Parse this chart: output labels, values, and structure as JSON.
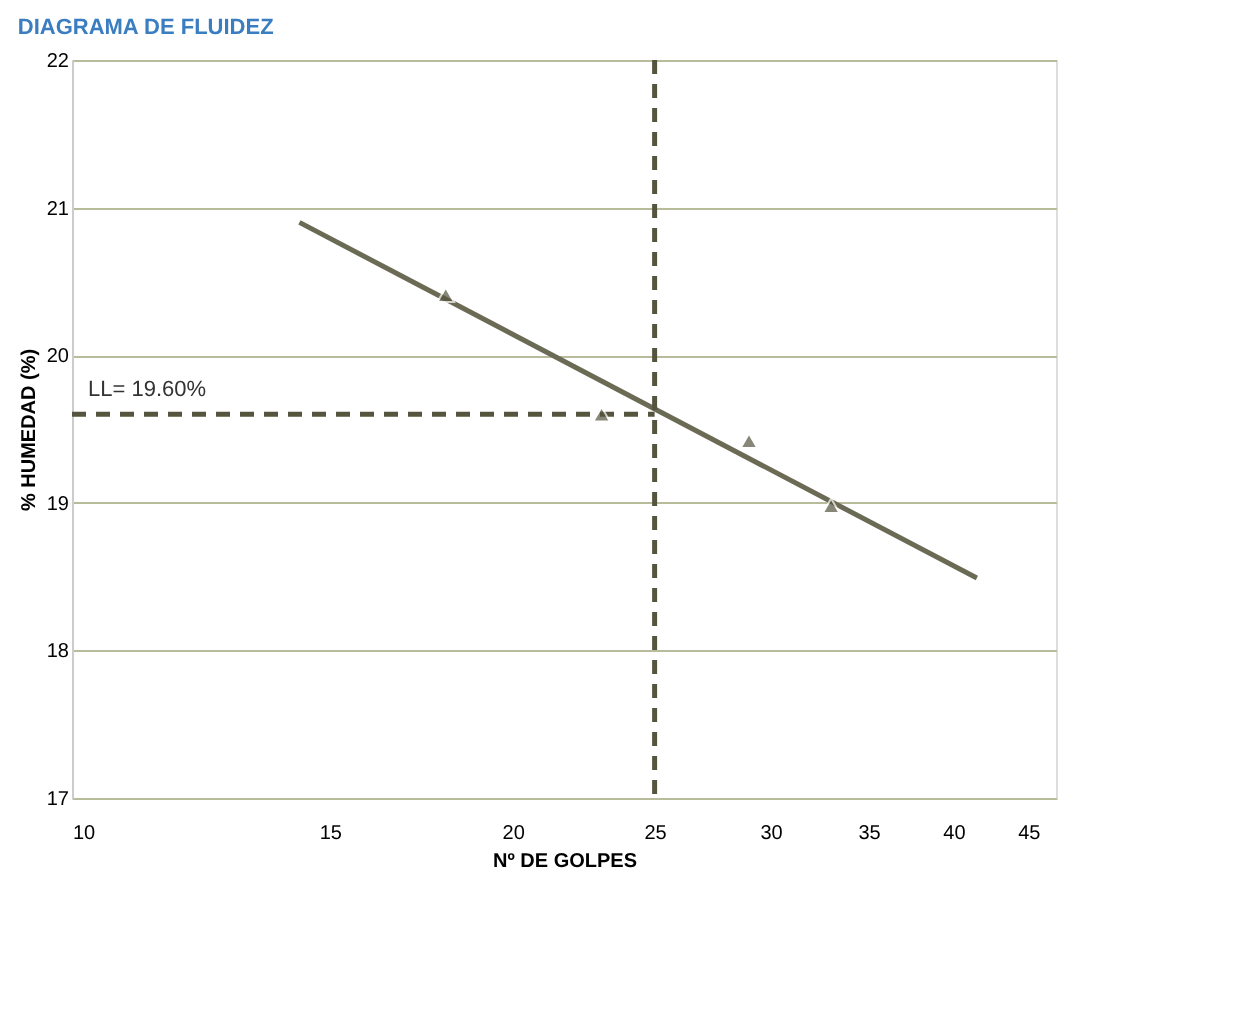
{
  "chart_data": {
    "type": "scatter",
    "title": "DIAGRAMA DE FLUIDEZ",
    "xlabel": "Nº DE GOLPES",
    "ylabel": "% HUMEDAD (%)",
    "x": [
      18,
      23,
      29,
      33
    ],
    "series": [
      {
        "color": "#55553f",
        "values": [
          20.41,
          19.6,
          19.42,
          18.98
        ],
        "marker": "triangle"
      },
      {
        "type": "line",
        "color": "#6b6b55",
        "x": [
          14.3,
          41.5
        ],
        "values": [
          20.9,
          18.49
        ],
        "marker": "none",
        "line_style": "solid"
      }
    ],
    "log": "x",
    "xlim": [
      10,
      47
    ],
    "xticks": [
      10,
      15,
      20,
      25,
      30,
      35,
      40,
      45
    ],
    "ylim": [
      17,
      22
    ],
    "yticks": [
      17,
      18,
      19,
      20,
      21,
      22
    ],
    "grid": "y",
    "ref_lines": [
      {
        "axis": "x",
        "value": 25,
        "label": null,
        "color": "#55553f",
        "line_style": "dashed"
      },
      {
        "axis": "y",
        "value": 19.6,
        "label": "LL= 19.60%",
        "color": "#55553f",
        "line_style": "dashed"
      }
    ]
  }
}
